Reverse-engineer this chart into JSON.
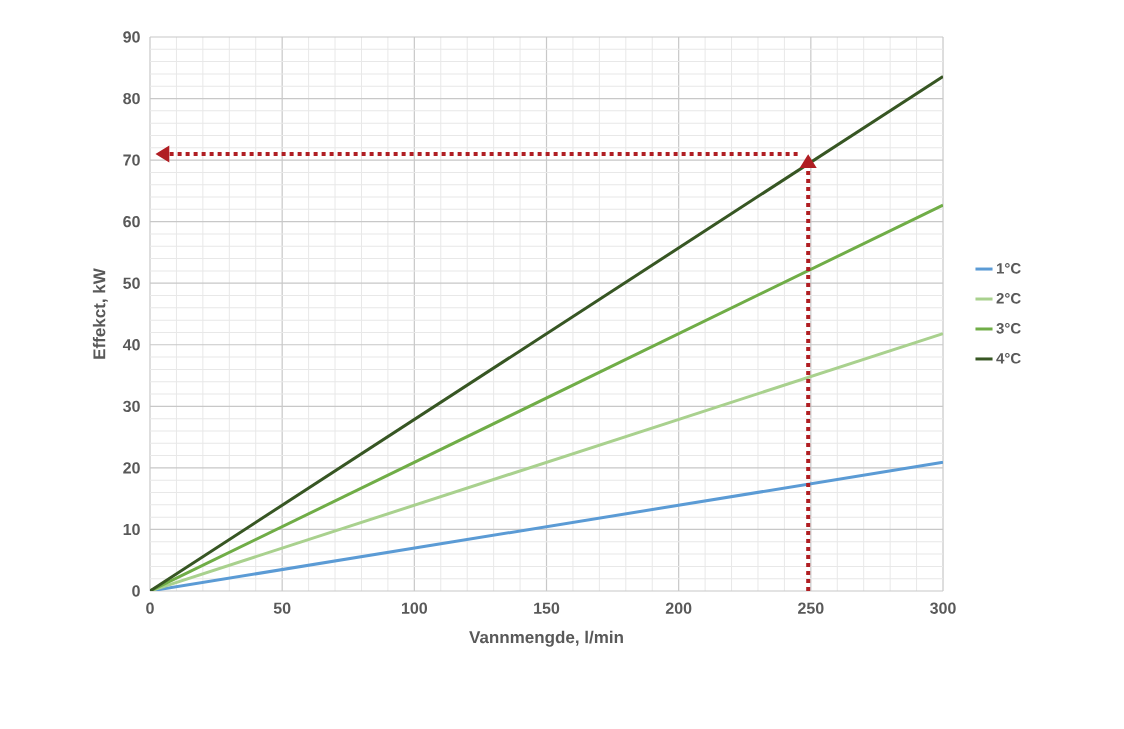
{
  "chart_data": {
    "type": "line",
    "xlabel": "Vannmengde, l/min",
    "ylabel": "Effekct, kW",
    "x": [
      0,
      300
    ],
    "series": [
      {
        "name": "1°C",
        "color": "#5b9bd5",
        "values": [
          0,
          20.9
        ]
      },
      {
        "name": "2°C",
        "color": "#a9d18e",
        "values": [
          0,
          41.8
        ]
      },
      {
        "name": "3°C",
        "color": "#70ad47",
        "values": [
          0,
          62.7
        ]
      },
      {
        "name": "4°C",
        "color": "#375623",
        "values": [
          0,
          83.6
        ]
      }
    ],
    "xlim": [
      0,
      300
    ],
    "xticks": [
      0,
      50,
      100,
      150,
      200,
      250,
      300
    ],
    "ylim": [
      0,
      90
    ],
    "yticks": [
      0,
      10,
      20,
      30,
      40,
      50,
      60,
      70,
      80,
      90
    ],
    "grid": true,
    "legend": "right",
    "ref_lines": [
      {
        "axis": "x",
        "value": 249,
        "color": "#b01e23",
        "line_style": "dotted"
      },
      {
        "axis": "y",
        "value": 71,
        "color": "#b01e23",
        "line_style": "dotted"
      }
    ]
  }
}
